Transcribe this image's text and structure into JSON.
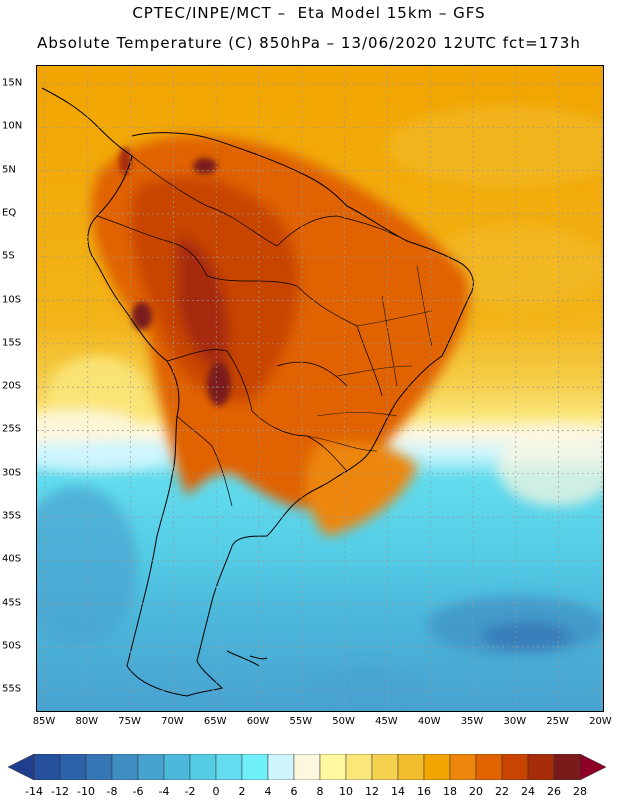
{
  "header": {
    "line1": "CPTEC/INPE/MCT –  Eta Model 15km – GFS",
    "line2": "Absolute Temperature (C) 850hPa – 13/06/2020 12UTC fct=173h"
  },
  "map": {
    "lat_ticks": [
      "15N",
      "10N",
      "5N",
      "EQ",
      "5S",
      "10S",
      "15S",
      "20S",
      "25S",
      "30S",
      "35S",
      "40S",
      "45S",
      "50S",
      "55S"
    ],
    "lon_ticks": [
      "85W",
      "80W",
      "75W",
      "70W",
      "65W",
      "60W",
      "55W",
      "50W",
      "45W",
      "40W",
      "35W",
      "30W",
      "25W",
      "20W"
    ],
    "gridlines": "dotted"
  },
  "colorbar": {
    "labels": [
      "-14",
      "-12",
      "-10",
      "-8",
      "-6",
      "-4",
      "-2",
      "0",
      "2",
      "4",
      "6",
      "8",
      "10",
      "12",
      "14",
      "16",
      "18",
      "20",
      "22",
      "24",
      "26",
      "28"
    ],
    "colors": [
      "#1f3e8c",
      "#24509c",
      "#2c62aa",
      "#3576b4",
      "#3e8ec4",
      "#48a2d0",
      "#4cb8dc",
      "#54cce6",
      "#62dcee",
      "#70f0f8",
      "#cff5fc",
      "#fdf7e0",
      "#fff8a0",
      "#fbe67a",
      "#f6d150",
      "#f2bc2c",
      "#f2a400",
      "#ed860a",
      "#e06200",
      "#c84400",
      "#a62c0a",
      "#7a1a1a",
      "#8c0026"
    ]
  }
}
